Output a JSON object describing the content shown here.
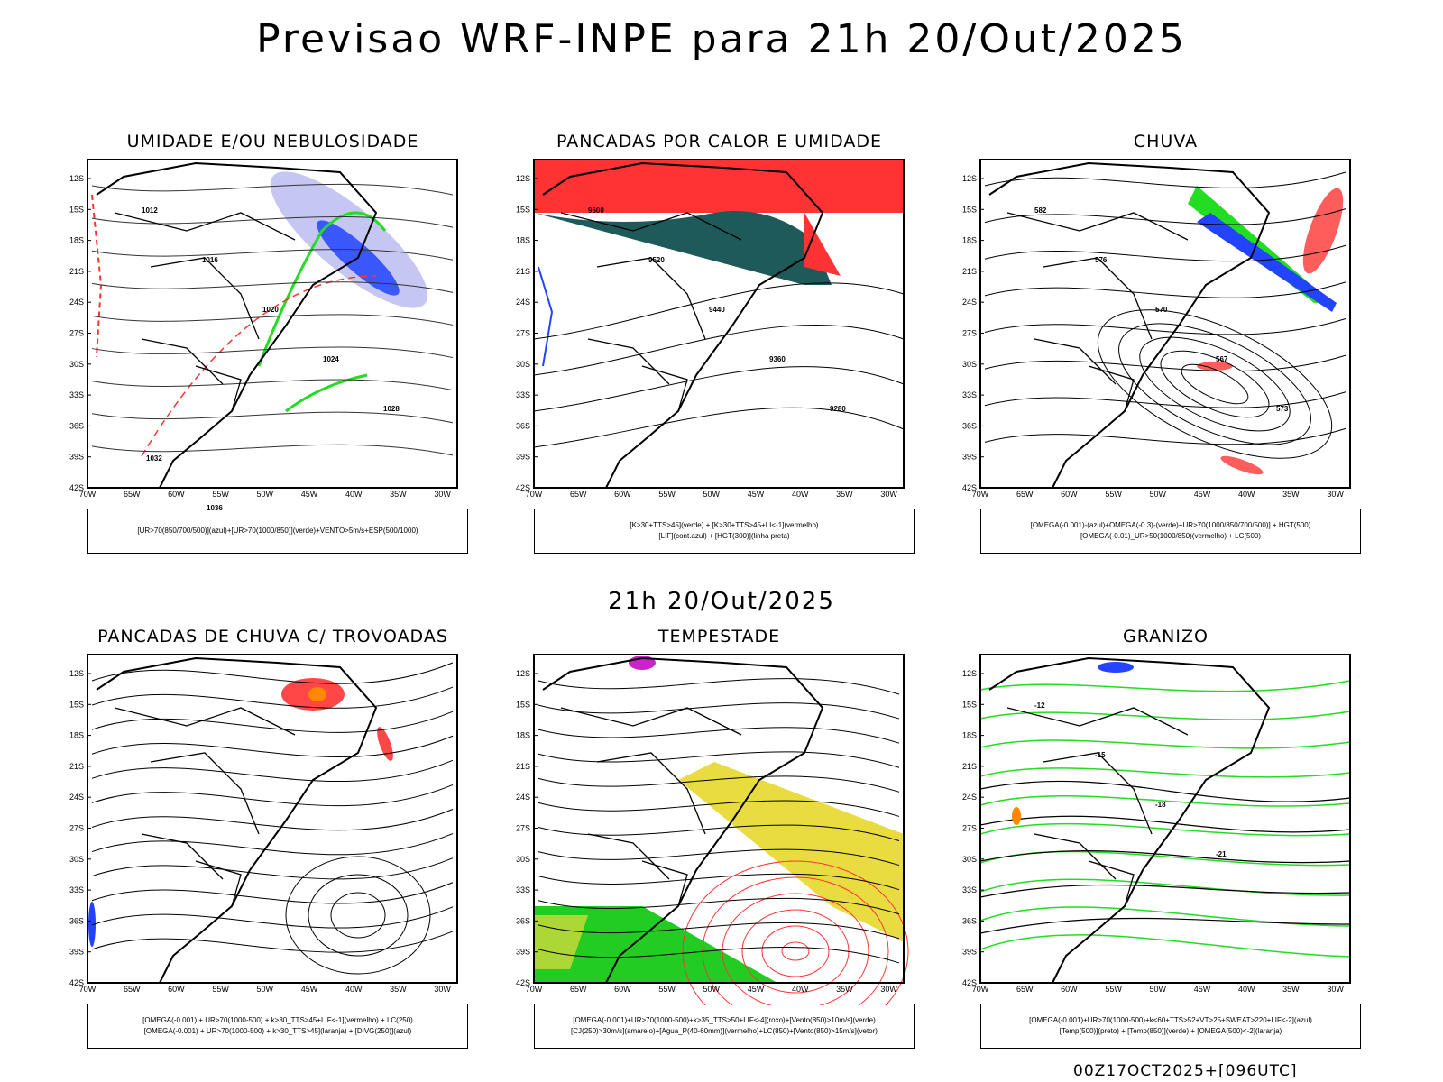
{
  "header": {
    "title": "Previsao WRF-INPE  para 21h 20/Out/2025",
    "mid_time": "21h 20/Out/2025",
    "footer": "00Z17OCT2025+[096UTC]"
  },
  "axes": {
    "lat_labels": [
      "12S",
      "15S",
      "18S",
      "21S",
      "24S",
      "27S",
      "30S",
      "33S",
      "36S",
      "39S",
      "42S"
    ],
    "lon_labels": [
      "70W",
      "65W",
      "60W",
      "55W",
      "50W",
      "45W",
      "40W",
      "35W",
      "30W"
    ]
  },
  "colors": {
    "green": "#22dd22",
    "blue": "#2244ff",
    "lavender": "#b8b8f0",
    "red": "#ff3333",
    "teal": "#1f5a5a",
    "yellow": "#e8dc40",
    "orange": "#ff8800",
    "purple": "#cc22cc"
  },
  "panels": [
    {
      "title": "UMIDADE E/OU NEBULOSIDADE",
      "legend": [
        "[UR>70(850/700/500)](azul)+[UR>70(1000/850)](verde)+VENTO>5m/s+ESP(500/1000)"
      ],
      "contour_labels": [
        "1012",
        "1016",
        "1020",
        "1024",
        "1028",
        "1032",
        "1036"
      ]
    },
    {
      "title": "PANCADAS POR CALOR E UMIDADE",
      "legend": [
        "[K>30+TTS>45](verde) + [K>30+TTS>45+LI<-1](vermelho)",
        "[LIF](cont.azul) + [HGT(300)](linha preta)"
      ],
      "contour_labels": [
        "9600",
        "9520",
        "9440",
        "9360",
        "9280"
      ]
    },
    {
      "title": "CHUVA",
      "legend": [
        "[OMEGA(-0.001)-(azul)+OMEGA(-0.3)-(verde)+UR>70(1000/850/700/500)] + HGT(500)",
        "[OMEGA(-0.01)_UR>50(1000/850)(vermelho) + LC(500)"
      ],
      "contour_labels": [
        "582",
        "576",
        "570",
        "567",
        "573"
      ]
    },
    {
      "title": "PANCADAS DE CHUVA C/ TROVOADAS",
      "legend": [
        "[OMEGA(-0.001) + UR>70(1000-500) + k>30_TTS>45+LIF<-1](vermelho) + LC(250)",
        "[OMEGA(-0.001) + UR>70(1000-500) + k>30_TTS>45](laranja) + [DIVG(250)](azul)"
      ],
      "contour_labels": []
    },
    {
      "title": "TEMPESTADE",
      "legend": [
        "[OMEGA(-0.001)+UR>70(1000-500)+k>35_TTS>50+LIF<-4](roxo)+[Vento(850)>10m/s](verde)",
        "[CJ(250)>30m/s](amarelo)+[Agua_P(40-60mm)](vermelho)+LC(850)+[Vento(850)>15m/s](vetor)"
      ],
      "contour_labels": []
    },
    {
      "title": "GRANIZO",
      "legend": [
        "[OMEGA(-0.001)+UR>70(1000-500)+k<60+TTS>52+VT>25+SWEAT>220+LIF<-2](azul)",
        "[Temp(500)](preto) + [Temp(850)](verde) + [OMEGA(500)<-2](laranja)"
      ],
      "contour_labels": [
        "-12",
        "-15",
        "-18",
        "-21"
      ]
    }
  ]
}
